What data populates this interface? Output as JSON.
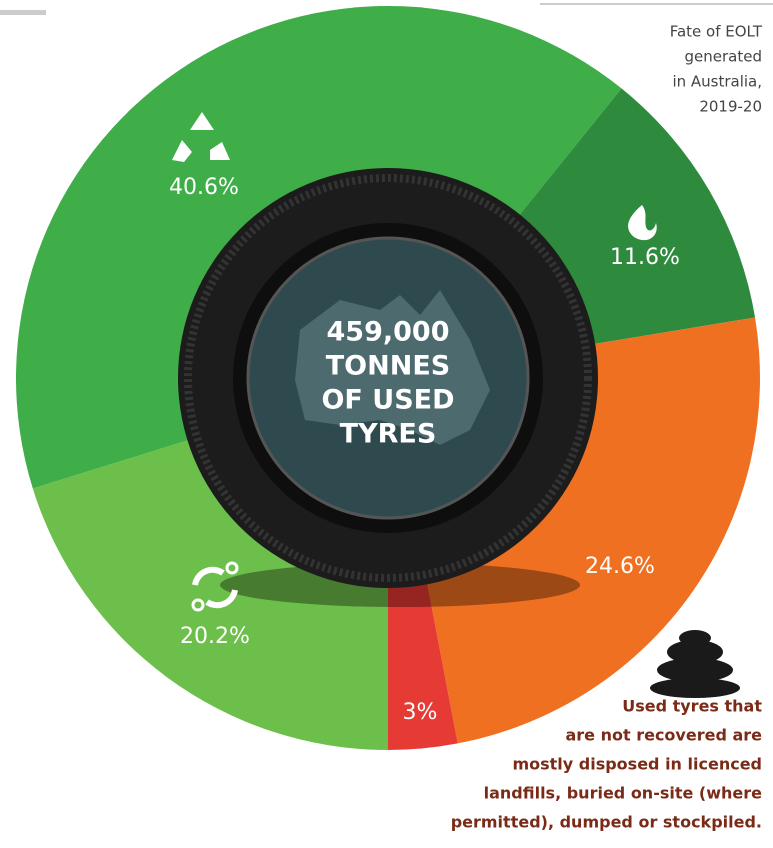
{
  "chart_data": {
    "type": "pie",
    "title": [
      "Fate of EOLT",
      "generated",
      "in Australia,",
      "2019-20"
    ],
    "values": [
      20.2,
      40.6,
      11.6,
      24.6,
      3
    ],
    "value_labels": [
      "20.2%",
      "40.6%",
      "11.6%",
      "24.6%",
      "3%"
    ],
    "colors": [
      "#6dbf4b",
      "#3fae49",
      "#2e8b3e",
      "#f07022",
      "#e63a35"
    ],
    "center_text": [
      "459,000",
      "TONNES",
      "OF USED",
      "TYRES"
    ],
    "note": [
      "Used tyres that",
      "are not recovered are",
      "mostly disposed in licenced",
      "landfills, buried on-site (where",
      "permitted), dumped or stockpiled."
    ]
  }
}
